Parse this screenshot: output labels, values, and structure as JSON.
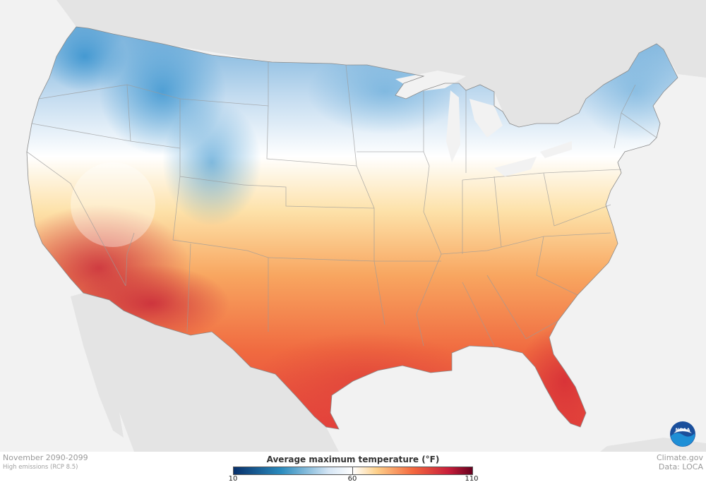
{
  "map": {
    "region": "Contiguous United States",
    "variable": "Average maximum temperature",
    "unit": "°F",
    "gradient_stops": [
      {
        "value": 10,
        "color": "#08306b"
      },
      {
        "value": 30,
        "color": "#2b8cbe"
      },
      {
        "value": 50,
        "color": "#d6e6f5"
      },
      {
        "value": 60,
        "color": "#ffffff"
      },
      {
        "value": 70,
        "color": "#fdd08a"
      },
      {
        "value": 85,
        "color": "#f4693f"
      },
      {
        "value": 100,
        "color": "#c81e3a"
      },
      {
        "value": 110,
        "color": "#67001f"
      }
    ]
  },
  "caption": {
    "period": "November 2090-2099",
    "scenario": "High emissions (RCP 8.5)"
  },
  "credits": {
    "site": "Climate.gov",
    "data": "Data: LOCA"
  },
  "legend": {
    "title": "Average maximum temperature (°F)",
    "min_label": "10",
    "mid_label": "60",
    "max_label": "110",
    "min": 10,
    "mid": 60,
    "max": 110
  },
  "logo": {
    "text": "NOAA"
  }
}
